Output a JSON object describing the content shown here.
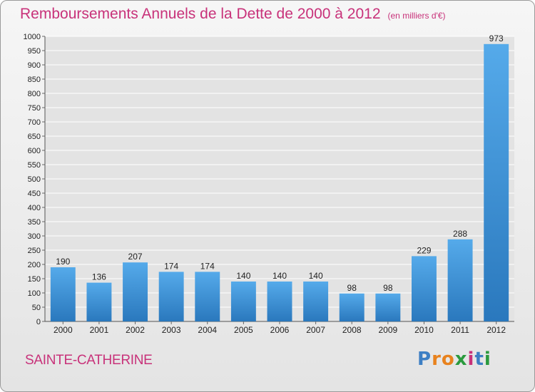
{
  "chart_data": {
    "type": "bar",
    "title": "Remboursements Annuels de la Dette de 2000 à 2012",
    "unit_label": "(en milliers d'€)",
    "categories": [
      "2000",
      "2001",
      "2002",
      "2003",
      "2004",
      "2005",
      "2006",
      "2007",
      "2008",
      "2009",
      "2010",
      "2011",
      "2012"
    ],
    "values": [
      190,
      136,
      207,
      174,
      174,
      140,
      140,
      140,
      98,
      98,
      229,
      288,
      973
    ],
    "ylim": [
      0,
      1000
    ],
    "yticks": [
      0,
      50,
      100,
      150,
      200,
      250,
      300,
      350,
      400,
      450,
      500,
      550,
      600,
      650,
      700,
      750,
      800,
      850,
      900,
      950,
      1000
    ],
    "grid": true,
    "bar_color": "#3b8fd4",
    "xlabel": "",
    "ylabel": ""
  },
  "commune": "SAINTE-CATHERINE",
  "logo": {
    "text": "Proxiti",
    "letter_colors": [
      "#3d7fc4",
      "#e8821e",
      "#e8821e",
      "#2b9a3e",
      "#c8327a",
      "#3d7fc4",
      "#2b9a3e"
    ]
  },
  "colors": {
    "title": "#c8327a",
    "grid": "#ffffff",
    "axis_text": "#222222"
  }
}
